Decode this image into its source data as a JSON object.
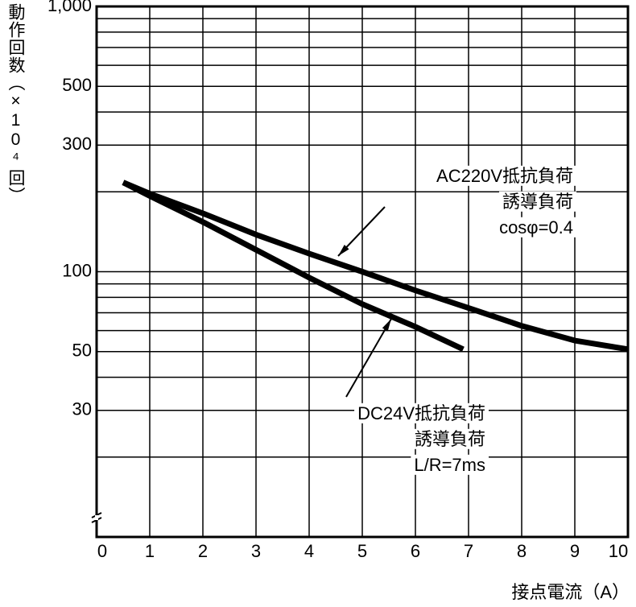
{
  "chart_data": {
    "type": "line",
    "y_label": "動作回数（×10⁴回）",
    "x_label": "接点電流（A）",
    "xlim": [
      0,
      10
    ],
    "xticks": [
      0,
      1,
      2,
      3,
      4,
      5,
      6,
      7,
      8,
      9,
      10
    ],
    "ylim": [
      10,
      1000
    ],
    "log_y": true,
    "yticks": [
      30,
      50,
      100,
      300,
      500,
      {
        "value": 1000,
        "label": "1,000"
      }
    ],
    "y_minor_grid": [
      20,
      40,
      60,
      70,
      80,
      90,
      200,
      400,
      600,
      700,
      800,
      900
    ],
    "grid": true,
    "series": [
      {
        "color": "#000000",
        "x": [
          0.5,
          1,
          2,
          3,
          4,
          5,
          6,
          7,
          8,
          9,
          10
        ],
        "values": [
          217,
          197,
          166,
          138,
          117,
          100,
          85,
          73,
          62.5,
          55,
          51
        ]
      },
      {
        "color": "#000000",
        "x": [
          0.5,
          1,
          2,
          3,
          4,
          5,
          6,
          6.9
        ],
        "values": [
          217,
          193,
          154,
          121,
          95,
          75.5,
          62,
          51
        ]
      }
    ],
    "annotations": [
      {
        "lines": [
          "AC220V抵抗負荷",
          "誘導負荷",
          "cosφ=0.4"
        ]
      },
      {
        "lines": [
          "DC24V抵抗負荷",
          "誘導負荷",
          "L/R=7ms"
        ]
      }
    ]
  }
}
